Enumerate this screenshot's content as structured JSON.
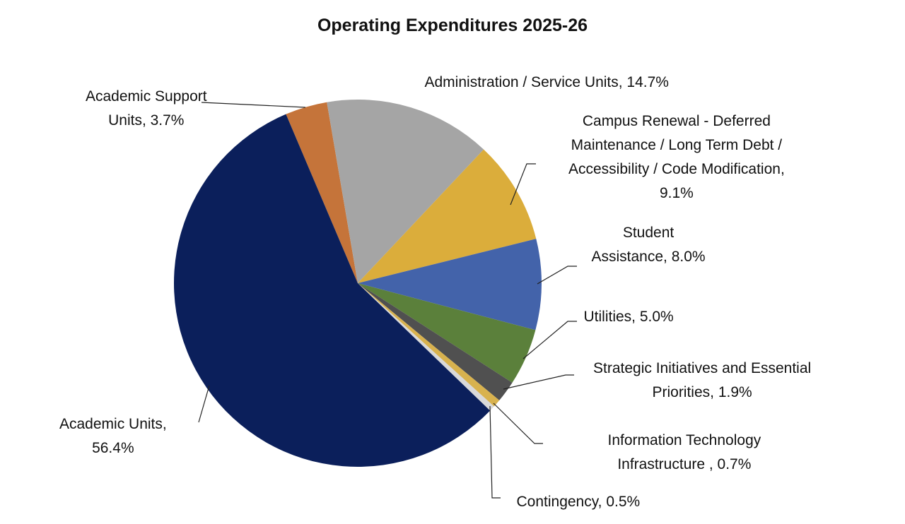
{
  "chart_data": {
    "type": "pie",
    "title": "Operating Expenditures 2025-26",
    "slices": [
      {
        "label": "Academic Support Units",
        "value": 3.7,
        "text": [
          "Academic Support",
          "Units, 3.7%"
        ],
        "color": "#c5743a"
      },
      {
        "label": "Administration / Service Units",
        "value": 14.7,
        "text": [
          "Administration / Service Units, 14.7%"
        ],
        "color": "#a5a5a5"
      },
      {
        "label": "Campus Renewal - Deferred Maintenance / Long Term Debt / Accessibility / Code Modification",
        "value": 9.1,
        "text": [
          "Campus Renewal - Deferred",
          "Maintenance / Long Term Debt /",
          "Accessibility / Code Modification,",
          "9.1%"
        ],
        "color": "#dbad3b"
      },
      {
        "label": "Student Assistance",
        "value": 8.0,
        "text": [
          "Student",
          "Assistance, 8.0%"
        ],
        "color": "#4363aa"
      },
      {
        "label": "Utilities",
        "value": 5.0,
        "text": [
          "Utilities, 5.0%"
        ],
        "color": "#5b803b"
      },
      {
        "label": "Strategic Initiatives and Essential Priorities",
        "value": 1.9,
        "text": [
          "Strategic Initiatives and Essential",
          "Priorities, 1.9%"
        ],
        "color": "#505050"
      },
      {
        "label": "Information Technology Infrastructure",
        "value": 0.7,
        "text": [
          "Information Technology",
          "Infrastructure , 0.7%"
        ],
        "color": "#d8b24e"
      },
      {
        "label": "Contingency",
        "value": 0.5,
        "text": [
          "Contingency, 0.5%"
        ],
        "color": "#d9d9d9"
      },
      {
        "label": "Academic Units",
        "value": 56.4,
        "text": [
          "Academic Units,",
          "56.4%"
        ],
        "color": "#0b1f5b"
      }
    ],
    "start_angle_deg": -23,
    "direction": "clockwise",
    "legend": "none",
    "data_labels": "outside with leader lines"
  }
}
